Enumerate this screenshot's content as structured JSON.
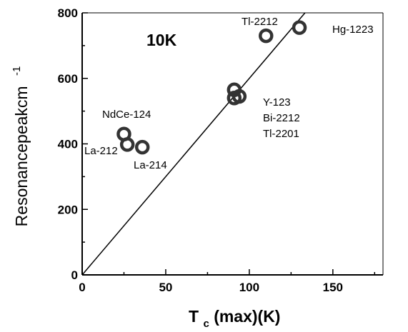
{
  "chart_data": {
    "type": "scatter",
    "title": "10K",
    "xlabel": {
      "main": "T",
      "sub": "c",
      "rest": "(max)(K)"
    },
    "ylabel": {
      "main": "Resonancepeakcm",
      "sup": "-1"
    },
    "xlim": [
      0,
      180
    ],
    "ylim": [
      0,
      800
    ],
    "xticks": [
      0,
      50,
      100,
      150
    ],
    "yticks": [
      0,
      200,
      400,
      600,
      800
    ],
    "fit_line": {
      "slope": 6.0,
      "intercept": 0
    },
    "points": [
      {
        "x": 25,
        "y": 430
      },
      {
        "x": 27,
        "y": 398
      },
      {
        "x": 36,
        "y": 390
      },
      {
        "x": 91,
        "y": 565
      },
      {
        "x": 94,
        "y": 545
      },
      {
        "x": 91,
        "y": 540
      },
      {
        "x": 110,
        "y": 730
      },
      {
        "x": 130,
        "y": 755
      }
    ],
    "point_labels": [
      "NdCe-124",
      "La-212",
      "La-214",
      "Y-123",
      "Bi-2212",
      "Tl-2201",
      "Tl-2212",
      "Hg-1223"
    ]
  }
}
